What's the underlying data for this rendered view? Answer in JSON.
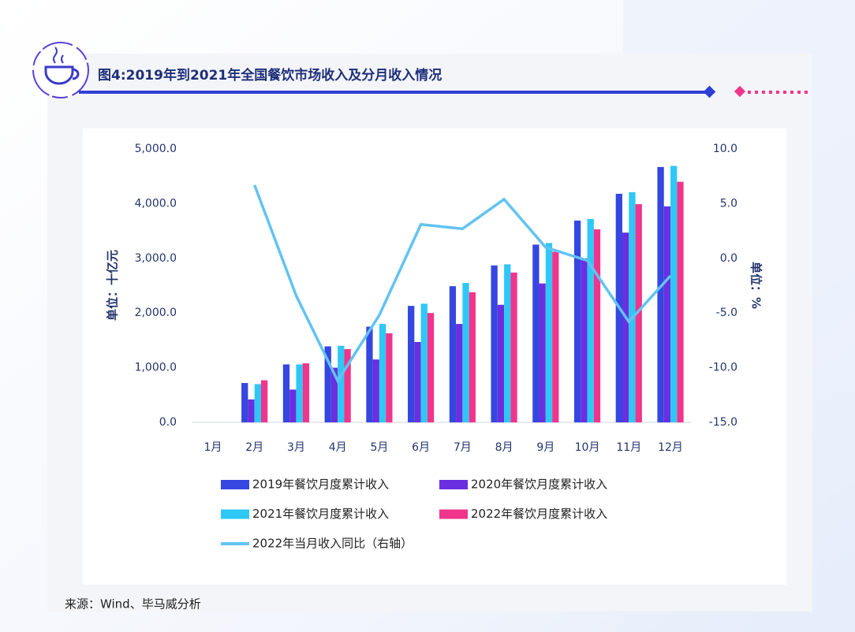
{
  "chart_data": {
    "type": "bar",
    "title": "图4:2019年到2021年全国餐饮市场收入及分月收入情况",
    "source": "来源：Wind、毕马威分析",
    "y_label": "单位：十亿元",
    "y2_label": "单位：%",
    "categories": [
      "1月",
      "2月",
      "3月",
      "4月",
      "5月",
      "6月",
      "7月",
      "8月",
      "9月",
      "10月",
      "11月",
      "12月"
    ],
    "series": [
      {
        "name": "2019年餐饮月度累计收入",
        "color": "#3547e0",
        "values": [
          null,
          720,
          1060,
          1390,
          1750,
          2130,
          2490,
          2870,
          3250,
          3690,
          4180,
          4670
        ]
      },
      {
        "name": "2020年餐饮月度累计收入",
        "color": "#6a2fe0",
        "values": [
          null,
          420,
          600,
          1000,
          1150,
          1470,
          1800,
          2150,
          2540,
          3000,
          3470,
          3950
        ]
      },
      {
        "name": "2021年餐饮月度累计收入",
        "color": "#2ec8f6",
        "values": [
          null,
          700,
          1060,
          1400,
          1800,
          2170,
          2550,
          2890,
          3280,
          3720,
          4210,
          4690
        ]
      },
      {
        "name": "2022年餐饮月度累计收入",
        "color": "#f0358c",
        "values": [
          null,
          770,
          1080,
          1340,
          1630,
          2000,
          2380,
          2740,
          3120,
          3530,
          3990,
          4400
        ]
      },
      {
        "name": "2022年当月收入同比（右轴）",
        "color": "#62c3f2",
        "type": "line",
        "axis": "y2",
        "values": [
          null,
          6.7,
          -3.4,
          -11.2,
          -5.2,
          3.1,
          2.7,
          5.4,
          1.0,
          -0.2,
          -5.8,
          -1.6
        ]
      }
    ],
    "ylim": [
      0,
      5000
    ],
    "yticks": [
      {
        "value": 0,
        "label": "0.0"
      },
      {
        "value": 1000,
        "label": "1,000.0"
      },
      {
        "value": 2000,
        "label": "2,000.0"
      },
      {
        "value": 3000,
        "label": "3,000.0"
      },
      {
        "value": 4000,
        "label": "4,000.0"
      },
      {
        "value": 5000,
        "label": "5,000.0"
      }
    ],
    "y2lim": [
      -15,
      10
    ],
    "y2ticks": [
      {
        "value": -15,
        "label": "-15.0"
      },
      {
        "value": -10,
        "label": "-10.0"
      },
      {
        "value": -5,
        "label": "-5.0"
      },
      {
        "value": 0,
        "label": "0.0"
      },
      {
        "value": 5,
        "label": "5.0"
      },
      {
        "value": 10,
        "label": "10.0"
      }
    ],
    "grid": false
  }
}
